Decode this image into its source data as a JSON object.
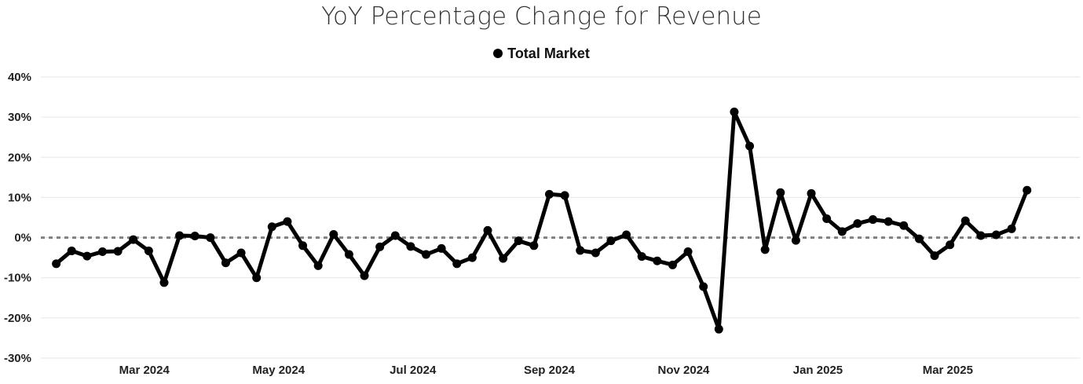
{
  "chart_data": {
    "type": "line",
    "title": "YoY Percentage Change for Revenue",
    "xlabel": "",
    "ylabel": "",
    "legend": {
      "position": "top-center"
    },
    "grid": {
      "horizontal": true,
      "vertical": false
    },
    "reference_line": {
      "y": 0,
      "style": "dotted"
    },
    "ylim": [
      -0.3,
      0.4
    ],
    "y_ticks": [
      0.4,
      0.3,
      0.2,
      0.1,
      0.0,
      -0.1,
      -0.2,
      -0.3
    ],
    "y_tick_labels": [
      "40%",
      "30%",
      "20%",
      "10%",
      "0%",
      "-10%",
      "-20%",
      "-30%"
    ],
    "x_ticks": [
      {
        "label": "Mar 2024",
        "date": "2024-03-01"
      },
      {
        "label": "May 2024",
        "date": "2024-05-01"
      },
      {
        "label": "Jul 2024",
        "date": "2024-07-01"
      },
      {
        "label": "Sep 2024",
        "date": "2024-09-01"
      },
      {
        "label": "Nov 2024",
        "date": "2024-11-01"
      },
      {
        "label": "Jan 2025",
        "date": "2025-01-01"
      },
      {
        "label": "Mar 2025",
        "date": "2025-03-01"
      }
    ],
    "x_range": [
      "2024-01-14",
      "2025-04-30"
    ],
    "series": [
      {
        "name": "Total Market",
        "color": "#000000",
        "points": [
          {
            "x": "2024-01-21",
            "y": -0.065
          },
          {
            "x": "2024-01-28",
            "y": -0.033
          },
          {
            "x": "2024-02-04",
            "y": -0.046
          },
          {
            "x": "2024-02-11",
            "y": -0.035
          },
          {
            "x": "2024-02-18",
            "y": -0.034
          },
          {
            "x": "2024-02-25",
            "y": -0.005
          },
          {
            "x": "2024-03-03",
            "y": -0.033
          },
          {
            "x": "2024-03-10",
            "y": -0.112
          },
          {
            "x": "2024-03-17",
            "y": 0.005
          },
          {
            "x": "2024-03-24",
            "y": 0.004
          },
          {
            "x": "2024-03-31",
            "y": 0.0
          },
          {
            "x": "2024-04-07",
            "y": -0.063
          },
          {
            "x": "2024-04-14",
            "y": -0.038
          },
          {
            "x": "2024-04-21",
            "y": -0.1
          },
          {
            "x": "2024-04-28",
            "y": 0.027
          },
          {
            "x": "2024-05-05",
            "y": 0.04
          },
          {
            "x": "2024-05-12",
            "y": -0.02
          },
          {
            "x": "2024-05-19",
            "y": -0.07
          },
          {
            "x": "2024-05-26",
            "y": 0.008
          },
          {
            "x": "2024-06-02",
            "y": -0.042
          },
          {
            "x": "2024-06-09",
            "y": -0.095
          },
          {
            "x": "2024-06-16",
            "y": -0.023
          },
          {
            "x": "2024-06-23",
            "y": 0.005
          },
          {
            "x": "2024-06-30",
            "y": -0.022
          },
          {
            "x": "2024-07-07",
            "y": -0.042
          },
          {
            "x": "2024-07-14",
            "y": -0.027
          },
          {
            "x": "2024-07-21",
            "y": -0.065
          },
          {
            "x": "2024-07-28",
            "y": -0.05
          },
          {
            "x": "2024-08-04",
            "y": 0.018
          },
          {
            "x": "2024-08-11",
            "y": -0.052
          },
          {
            "x": "2024-08-18",
            "y": -0.008
          },
          {
            "x": "2024-08-25",
            "y": -0.02
          },
          {
            "x": "2024-09-01",
            "y": 0.108
          },
          {
            "x": "2024-09-08",
            "y": 0.105
          },
          {
            "x": "2024-09-15",
            "y": -0.032
          },
          {
            "x": "2024-09-22",
            "y": -0.038
          },
          {
            "x": "2024-09-29",
            "y": -0.008
          },
          {
            "x": "2024-10-06",
            "y": 0.007
          },
          {
            "x": "2024-10-13",
            "y": -0.047
          },
          {
            "x": "2024-10-20",
            "y": -0.058
          },
          {
            "x": "2024-10-27",
            "y": -0.068
          },
          {
            "x": "2024-11-03",
            "y": -0.035
          },
          {
            "x": "2024-11-10",
            "y": -0.122
          },
          {
            "x": "2024-11-17",
            "y": -0.228
          },
          {
            "x": "2024-11-24",
            "y": 0.313
          },
          {
            "x": "2024-12-01",
            "y": 0.228
          },
          {
            "x": "2024-12-08",
            "y": -0.03
          },
          {
            "x": "2024-12-15",
            "y": 0.112
          },
          {
            "x": "2024-12-22",
            "y": -0.007
          },
          {
            "x": "2024-12-29",
            "y": 0.11
          },
          {
            "x": "2025-01-05",
            "y": 0.047
          },
          {
            "x": "2025-01-12",
            "y": 0.015
          },
          {
            "x": "2025-01-19",
            "y": 0.035
          },
          {
            "x": "2025-01-26",
            "y": 0.045
          },
          {
            "x": "2025-02-02",
            "y": 0.04
          },
          {
            "x": "2025-02-09",
            "y": 0.03
          },
          {
            "x": "2025-02-16",
            "y": -0.003
          },
          {
            "x": "2025-02-23",
            "y": -0.045
          },
          {
            "x": "2025-03-02",
            "y": -0.018
          },
          {
            "x": "2025-03-09",
            "y": 0.042
          },
          {
            "x": "2025-03-16",
            "y": 0.005
          },
          {
            "x": "2025-03-23",
            "y": 0.007
          },
          {
            "x": "2025-03-30",
            "y": 0.022
          },
          {
            "x": "2025-04-06",
            "y": 0.118
          }
        ]
      }
    ]
  }
}
